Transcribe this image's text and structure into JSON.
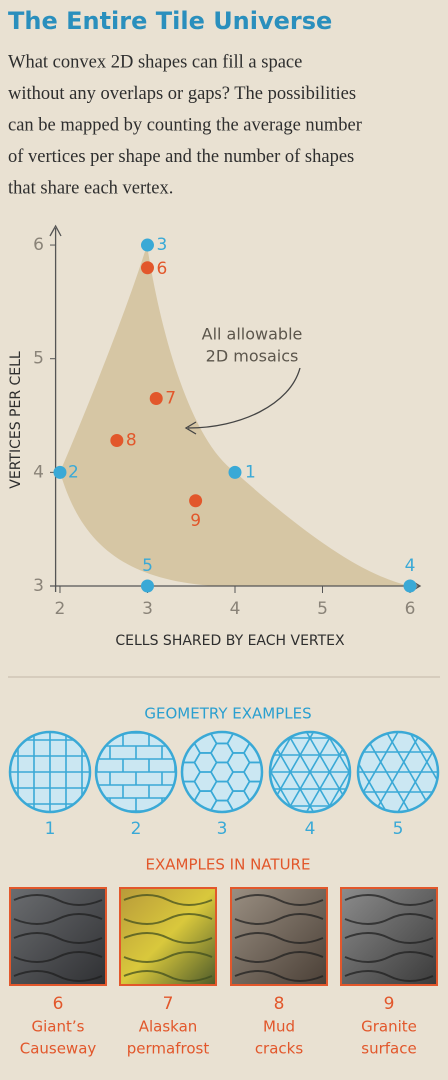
{
  "header": {
    "title": "The Entire Tile Universe",
    "intro": [
      "What convex 2D shapes can fill a space",
      "without any overlaps or gaps? The possibilities",
      "can be mapped by counting the average number",
      "of vertices per shape and the number of shapes",
      "that share each vertex."
    ]
  },
  "chart_data": {
    "type": "scatter",
    "x_label": "CELLS SHARED BY EACH VERTEX",
    "y_label": "VERTICES PER CELL",
    "annotation": [
      "All allowable",
      "2D mosaics"
    ],
    "xlim": [
      1.95,
      6.1
    ],
    "ylim": [
      3,
      6.15
    ],
    "xticks": [
      2,
      3,
      4,
      5,
      6
    ],
    "yticks": [
      3,
      4,
      5,
      6
    ],
    "series": [
      {
        "color": "#3aa9d6",
        "x": [
          4,
          2,
          3,
          6,
          3
        ],
        "values": [
          4,
          4,
          6,
          3,
          3
        ],
        "point_labels": [
          "1",
          "2",
          "3",
          "4",
          "5"
        ]
      },
      {
        "color": "#e2572b",
        "x": [
          3,
          3.1,
          2.65,
          3.55
        ],
        "values": [
          5.8,
          4.65,
          4.28,
          3.75
        ],
        "point_labels": [
          "6",
          "7",
          "8",
          "9"
        ]
      }
    ]
  },
  "geometry_examples": {
    "title": "GEOMETRY EXAMPLES",
    "items": [
      "1",
      "2",
      "3",
      "4",
      "5"
    ]
  },
  "nature_examples": {
    "title": "EXAMPLES IN NATURE",
    "items": [
      {
        "number": "6",
        "caption": [
          "Giant’s",
          "Causeway"
        ]
      },
      {
        "number": "7",
        "caption": [
          "Alaskan",
          "permafrost"
        ]
      },
      {
        "number": "8",
        "caption": [
          "Mud",
          "cracks"
        ]
      },
      {
        "number": "9",
        "caption": [
          "Granite",
          "surface"
        ]
      }
    ]
  }
}
